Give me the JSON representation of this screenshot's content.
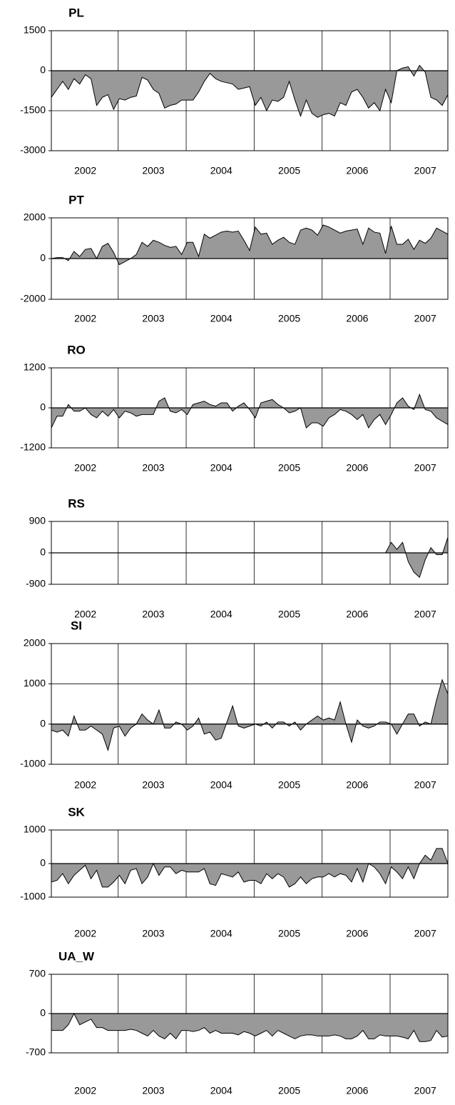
{
  "chart_data": [
    {
      "type": "area",
      "title": "PL",
      "color": "#999999",
      "categories": [
        null,
        null,
        null,
        null,
        null,
        null,
        "2002",
        null,
        null,
        null,
        null,
        null,
        null,
        null,
        null,
        null,
        null,
        null,
        "2003",
        null,
        null,
        null,
        null,
        null,
        null,
        null,
        null,
        null,
        null,
        null,
        "2004",
        null,
        null,
        null,
        null,
        null,
        null,
        null,
        null,
        null,
        null,
        null,
        "2005",
        null,
        null,
        null,
        null,
        null,
        null,
        null,
        null,
        null,
        null,
        null,
        "2006",
        null,
        null,
        null,
        null,
        null,
        null,
        null,
        null,
        null,
        null,
        null,
        "2007",
        null,
        null,
        null,
        null
      ],
      "values": [
        -1000,
        -700,
        -400,
        -700,
        -300,
        -500,
        -150,
        -300,
        -1300,
        -1000,
        -900,
        -1450,
        -1050,
        -1100,
        -1000,
        -950,
        -250,
        -350,
        -700,
        -850,
        -1400,
        -1300,
        -1250,
        -1100,
        -1100,
        -1100,
        -800,
        -400,
        -100,
        -300,
        -400,
        -450,
        -500,
        -700,
        -650,
        -600,
        -1300,
        -1000,
        -1500,
        -1100,
        -1150,
        -1000,
        -400,
        -1100,
        -1700,
        -1100,
        -1600,
        -1750,
        -1650,
        -1600,
        -1700,
        -1200,
        -1300,
        -800,
        -700,
        -1000,
        -1400,
        -1200,
        -1500,
        -700,
        -1200,
        0,
        100,
        150,
        -200,
        200,
        -50,
        -1000,
        -1100,
        -1300,
        -900
      ],
      "ylim": [
        -3000,
        1500
      ],
      "yticks": [
        -3000,
        -1500,
        0,
        1500
      ]
    },
    {
      "type": "area",
      "title": "PT",
      "color": "#999999",
      "categories": [
        null,
        null,
        null,
        null,
        null,
        null,
        "2002",
        null,
        null,
        null,
        null,
        null,
        null,
        null,
        null,
        null,
        null,
        null,
        "2003",
        null,
        null,
        null,
        null,
        null,
        null,
        null,
        null,
        null,
        null,
        null,
        "2004",
        null,
        null,
        null,
        null,
        null,
        null,
        null,
        null,
        null,
        null,
        null,
        "2005",
        null,
        null,
        null,
        null,
        null,
        null,
        null,
        null,
        null,
        null,
        null,
        "2006",
        null,
        null,
        null,
        null,
        null,
        null,
        null,
        null,
        null,
        null,
        null,
        "2007",
        null,
        null,
        null,
        null
      ],
      "values": [
        0,
        50,
        50,
        -100,
        350,
        100,
        450,
        500,
        0,
        600,
        750,
        300,
        -300,
        -150,
        0,
        200,
        800,
        600,
        900,
        800,
        650,
        550,
        600,
        200,
        800,
        800,
        100,
        1200,
        1000,
        1150,
        1300,
        1350,
        1300,
        1350,
        900,
        400,
        1550,
        1200,
        1250,
        700,
        900,
        1050,
        800,
        700,
        1400,
        1500,
        1400,
        1150,
        1650,
        1550,
        1400,
        1250,
        1350,
        1400,
        1450,
        700,
        1500,
        1300,
        1250,
        250,
        1600,
        700,
        700,
        950,
        450,
        900,
        750,
        1000,
        1500,
        1350,
        1200
      ],
      "ylim": [
        -2000,
        2000
      ],
      "yticks": [
        -2000,
        0,
        2000
      ]
    },
    {
      "type": "area",
      "title": "RO",
      "color": "#999999",
      "categories": [
        null,
        null,
        null,
        null,
        null,
        null,
        "2002",
        null,
        null,
        null,
        null,
        null,
        null,
        null,
        null,
        null,
        null,
        null,
        "2003",
        null,
        null,
        null,
        null,
        null,
        null,
        null,
        null,
        null,
        null,
        null,
        "2004",
        null,
        null,
        null,
        null,
        null,
        null,
        null,
        null,
        null,
        null,
        null,
        "2005",
        null,
        null,
        null,
        null,
        null,
        null,
        null,
        null,
        null,
        null,
        null,
        "2006",
        null,
        null,
        null,
        null,
        null,
        null,
        null,
        null,
        null,
        null,
        null,
        "2007",
        null,
        null,
        null,
        null
      ],
      "values": [
        -600,
        -250,
        -250,
        100,
        -100,
        -100,
        0,
        -200,
        -300,
        -100,
        -250,
        -50,
        -300,
        -100,
        -150,
        -250,
        -200,
        -200,
        -200,
        200,
        300,
        -100,
        -150,
        -50,
        -200,
        100,
        150,
        200,
        100,
        50,
        150,
        150,
        -100,
        50,
        150,
        -50,
        -300,
        150,
        200,
        250,
        100,
        0,
        -150,
        -100,
        0,
        -600,
        -450,
        -450,
        -550,
        -300,
        -200,
        -50,
        -100,
        -200,
        -350,
        -200,
        -600,
        -350,
        -200,
        -500,
        -200,
        150,
        300,
        50,
        -50,
        400,
        -50,
        -100,
        -300,
        -400,
        -500
      ],
      "ylim": [
        -1200,
        1200
      ],
      "yticks": [
        -1200,
        0,
        1200
      ]
    },
    {
      "type": "area",
      "title": "RS",
      "color": "#999999",
      "categories": [
        null,
        null,
        null,
        null,
        null,
        null,
        "2002",
        null,
        null,
        null,
        null,
        null,
        null,
        null,
        null,
        null,
        null,
        null,
        "2003",
        null,
        null,
        null,
        null,
        null,
        null,
        null,
        null,
        null,
        null,
        null,
        "2004",
        null,
        null,
        null,
        null,
        null,
        null,
        null,
        null,
        null,
        null,
        null,
        "2005",
        null,
        null,
        null,
        null,
        null,
        null,
        null,
        null,
        null,
        null,
        null,
        "2006",
        null,
        null,
        null,
        null,
        null,
        null,
        null,
        null,
        null,
        null,
        null,
        "2007",
        null,
        null,
        null,
        null
      ],
      "values": [
        null,
        null,
        null,
        null,
        null,
        null,
        null,
        null,
        null,
        null,
        null,
        null,
        null,
        null,
        null,
        null,
        null,
        null,
        null,
        null,
        null,
        null,
        null,
        null,
        null,
        null,
        null,
        null,
        null,
        null,
        null,
        null,
        null,
        null,
        null,
        null,
        null,
        null,
        null,
        null,
        null,
        null,
        null,
        null,
        null,
        null,
        null,
        null,
        null,
        null,
        null,
        null,
        null,
        null,
        null,
        null,
        null,
        null,
        null,
        0,
        300,
        100,
        300,
        -250,
        -550,
        -700,
        -200,
        150,
        -50,
        -50,
        450
      ],
      "ylim": [
        -900,
        900
      ],
      "yticks": [
        -900,
        0,
        900
      ]
    },
    {
      "type": "area",
      "title": "SI",
      "color": "#999999",
      "categories": [
        null,
        null,
        null,
        null,
        null,
        null,
        "2002",
        null,
        null,
        null,
        null,
        null,
        null,
        null,
        null,
        null,
        null,
        null,
        "2003",
        null,
        null,
        null,
        null,
        null,
        null,
        null,
        null,
        null,
        null,
        null,
        "2004",
        null,
        null,
        null,
        null,
        null,
        null,
        null,
        null,
        null,
        null,
        null,
        "2005",
        null,
        null,
        null,
        null,
        null,
        null,
        null,
        null,
        null,
        null,
        null,
        "2006",
        null,
        null,
        null,
        null,
        null,
        null,
        null,
        null,
        null,
        null,
        null,
        "2007",
        null,
        null,
        null,
        null
      ],
      "values": [
        -150,
        -200,
        -150,
        -300,
        200,
        -150,
        -150,
        -50,
        -150,
        -250,
        -650,
        -100,
        -50,
        -300,
        -100,
        0,
        250,
        100,
        0,
        350,
        -100,
        -100,
        50,
        0,
        -150,
        -50,
        150,
        -250,
        -200,
        -400,
        -350,
        50,
        450,
        -50,
        -100,
        -50,
        0,
        -50,
        50,
        -100,
        50,
        50,
        -50,
        50,
        -150,
        0,
        100,
        200,
        100,
        150,
        100,
        550,
        0,
        -450,
        100,
        -50,
        -100,
        -50,
        50,
        50,
        0,
        -250,
        0,
        250,
        250,
        -50,
        50,
        0,
        600,
        1100,
        750
      ],
      "ylim": [
        -1000,
        2000
      ],
      "yticks": [
        -1000,
        0,
        1000,
        2000
      ]
    },
    {
      "type": "area",
      "title": "SK",
      "color": "#999999",
      "categories": [
        null,
        null,
        null,
        null,
        null,
        null,
        "2002",
        null,
        null,
        null,
        null,
        null,
        null,
        null,
        null,
        null,
        null,
        null,
        "2003",
        null,
        null,
        null,
        null,
        null,
        null,
        null,
        null,
        null,
        null,
        null,
        "2004",
        null,
        null,
        null,
        null,
        null,
        null,
        null,
        null,
        null,
        null,
        null,
        "2005",
        null,
        null,
        null,
        null,
        null,
        null,
        null,
        null,
        null,
        null,
        null,
        "2006",
        null,
        null,
        null,
        null,
        null,
        null,
        null,
        null,
        null,
        null,
        null,
        "2007",
        null,
        null,
        null,
        null
      ],
      "values": [
        -550,
        -500,
        -300,
        -600,
        -350,
        -200,
        -50,
        -450,
        -200,
        -700,
        -700,
        -550,
        -350,
        -600,
        -200,
        -150,
        -600,
        -400,
        0,
        -350,
        -100,
        -100,
        -300,
        -200,
        -250,
        -250,
        -250,
        -150,
        -600,
        -650,
        -300,
        -350,
        -400,
        -250,
        -550,
        -500,
        -500,
        -600,
        -300,
        -450,
        -300,
        -400,
        -700,
        -600,
        -400,
        -600,
        -450,
        -400,
        -400,
        -300,
        -400,
        -300,
        -350,
        -550,
        -150,
        -550,
        0,
        -100,
        -300,
        -600,
        -100,
        -250,
        -450,
        -100,
        -450,
        0,
        250,
        100,
        450,
        450,
        0
      ],
      "ylim": [
        -1000,
        1000
      ],
      "yticks": [
        -1000,
        0,
        1000
      ]
    },
    {
      "type": "area",
      "title": "UA_W",
      "color": "#999999",
      "categories": [
        null,
        null,
        null,
        null,
        null,
        null,
        "2002",
        null,
        null,
        null,
        null,
        null,
        null,
        null,
        null,
        null,
        null,
        null,
        "2003",
        null,
        null,
        null,
        null,
        null,
        null,
        null,
        null,
        null,
        null,
        null,
        "2004",
        null,
        null,
        null,
        null,
        null,
        null,
        null,
        null,
        null,
        null,
        null,
        "2005",
        null,
        null,
        null,
        null,
        null,
        null,
        null,
        null,
        null,
        null,
        null,
        "2006",
        null,
        null,
        null,
        null,
        null,
        null,
        null,
        null,
        null,
        null,
        null,
        "2007",
        null,
        null,
        null,
        null
      ],
      "values": [
        -300,
        -300,
        -300,
        -200,
        0,
        -200,
        -150,
        -100,
        -250,
        -250,
        -300,
        -300,
        -300,
        -300,
        -280,
        -300,
        -350,
        -400,
        -300,
        -400,
        -450,
        -350,
        -450,
        -300,
        -300,
        -320,
        -300,
        -250,
        -350,
        -300,
        -350,
        -350,
        -350,
        -380,
        -320,
        -350,
        -400,
        -350,
        -300,
        -400,
        -300,
        -350,
        -400,
        -450,
        -400,
        -380,
        -380,
        -400,
        -400,
        -400,
        -380,
        -400,
        -450,
        -450,
        -400,
        -300,
        -450,
        -450,
        -380,
        -400,
        -400,
        -400,
        -420,
        -450,
        -300,
        -500,
        -500,
        -480,
        -300,
        -420,
        -400
      ],
      "ylim": [
        -700,
        700
      ],
      "yticks": [
        -700,
        0,
        700
      ]
    }
  ]
}
